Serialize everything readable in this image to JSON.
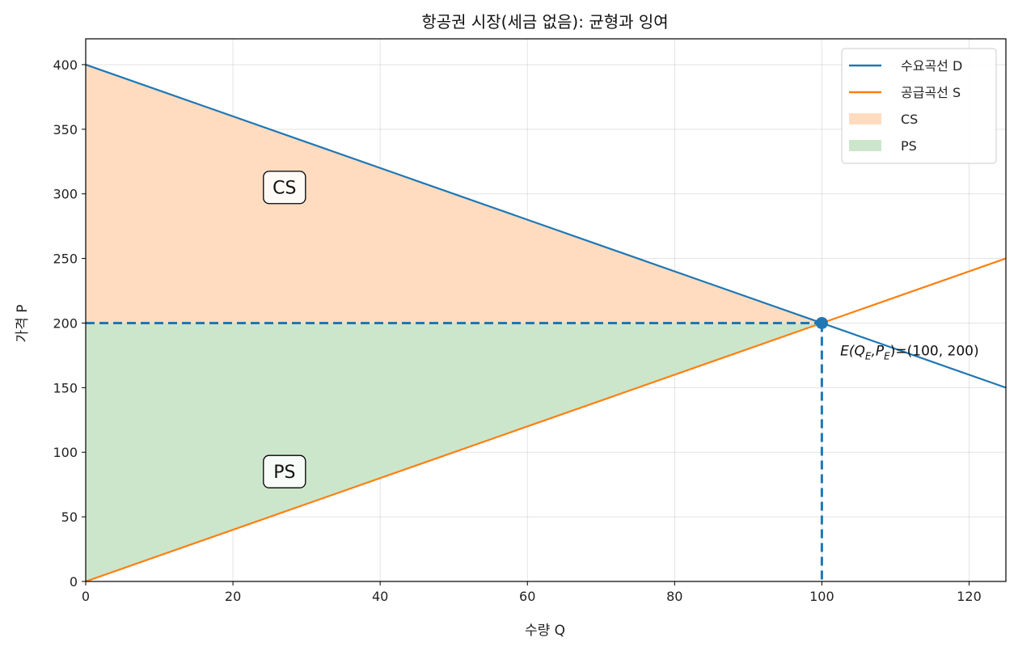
{
  "chart_data": {
    "type": "line",
    "title": "항공권 시장(세금 없음): 균형과 잉여",
    "xlabel": "수량 Q",
    "ylabel": "가격 P",
    "xlim": [
      0,
      125
    ],
    "ylim": [
      0,
      420
    ],
    "xticks": [
      0,
      20,
      40,
      60,
      80,
      100,
      120
    ],
    "yticks": [
      0,
      50,
      100,
      150,
      200,
      250,
      300,
      350,
      400
    ],
    "grid": true,
    "legend_position": "top-right",
    "series": [
      {
        "name": "수요곡선 D",
        "color": "#1f77b4",
        "x": [
          0,
          125
        ],
        "y": [
          400,
          150
        ]
      },
      {
        "name": "공급곡선 S",
        "color": "#ff7f0e",
        "x": [
          0,
          125
        ],
        "y": [
          0,
          250
        ]
      }
    ],
    "areas": [
      {
        "name": "CS",
        "color": "#ffdcc0",
        "points": [
          [
            0,
            400
          ],
          [
            100,
            200
          ],
          [
            0,
            200
          ]
        ]
      },
      {
        "name": "PS",
        "color": "#cce6cc",
        "points": [
          [
            0,
            200
          ],
          [
            100,
            200
          ],
          [
            0,
            0
          ]
        ]
      }
    ],
    "equilibrium": {
      "x": 100,
      "y": 200,
      "color": "#1f77b4"
    },
    "region_labels": [
      {
        "text": "CS",
        "x": 27,
        "y": 305
      },
      {
        "text": "PS",
        "x": 27,
        "y": 85
      }
    ],
    "annotation": {
      "label": "E(Q",
      "sub_e": "E",
      "comma_p": ",P",
      "close": ")=(100, 200)",
      "x": 102.5,
      "y": 175
    }
  }
}
